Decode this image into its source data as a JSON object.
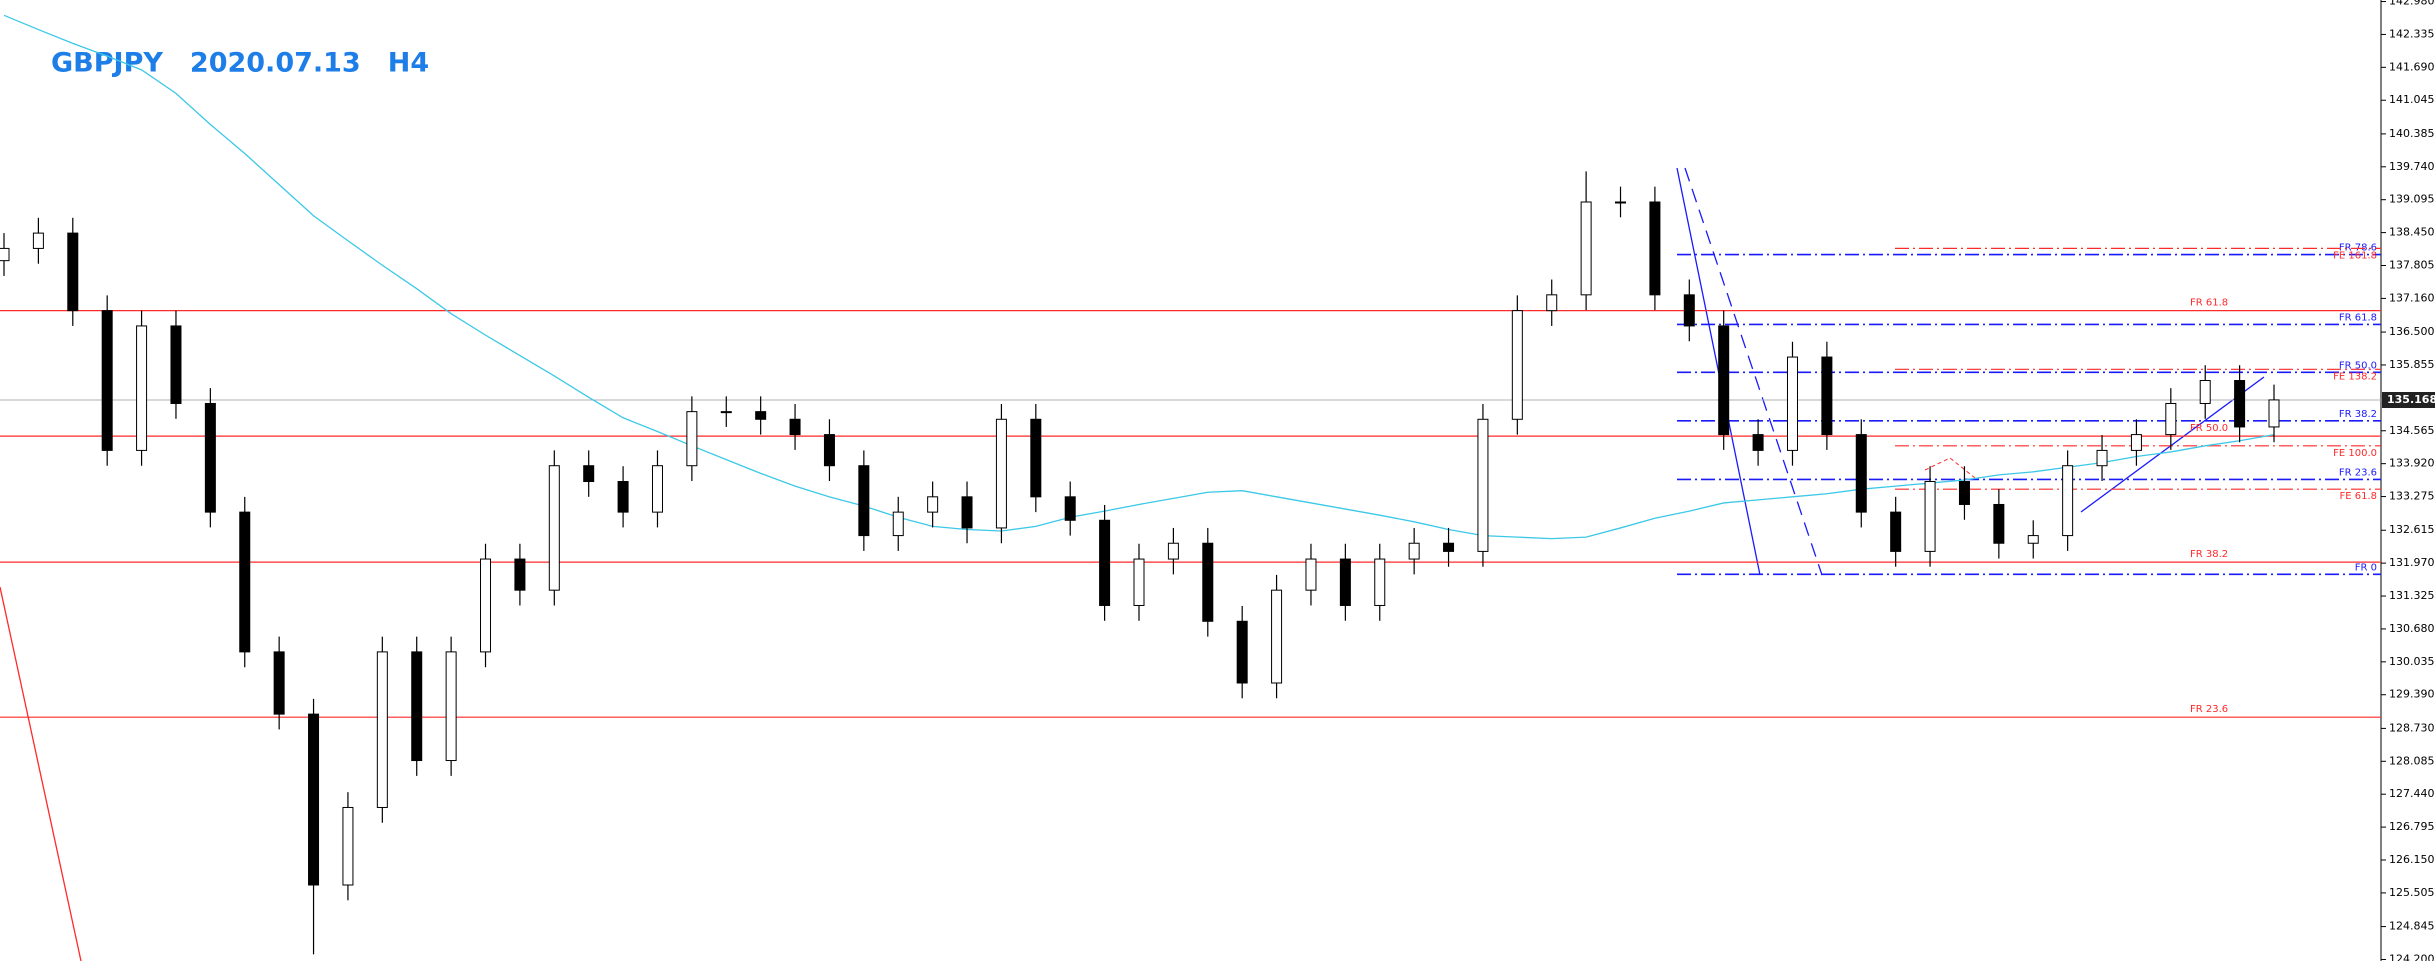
{
  "chart_data": {
    "type": "candlestick",
    "title": "GBPJPY　2020.07.13　H4",
    "title_color": "#1e7ee8",
    "ylim": [
      124.17,
      143.01
    ],
    "yticks": [
      {
        "value": 142.98,
        "label": "142.980"
      },
      142.335,
      {
        "value": 141.69,
        "label": "141.690"
      },
      141.045,
      140.385,
      {
        "value": 139.74,
        "label": "139.740"
      },
      139.095,
      {
        "value": 138.45,
        "label": "138.450"
      },
      137.805,
      {
        "value": 137.16,
        "label": "137.160"
      },
      {
        "value": 136.5,
        "label": "136.500"
      },
      135.855,
      134.565,
      {
        "value": 133.92,
        "label": "133.920"
      },
      133.275,
      132.615,
      {
        "value": 131.97,
        "label": "131.970"
      },
      131.325,
      {
        "value": 130.68,
        "label": "130.680"
      },
      130.035,
      {
        "value": 129.39,
        "label": "129.390"
      },
      {
        "value": 128.73,
        "label": "128.730"
      },
      128.085,
      {
        "value": 127.44,
        "label": "127.440"
      },
      126.795,
      {
        "value": 126.15,
        "label": "126.150"
      },
      125.505,
      124.845,
      {
        "value": 124.2,
        "label": "124.200"
      }
    ],
    "current": 135.168,
    "open": [
      137.9,
      138.14,
      138.44,
      136.92,
      134.18,
      136.62,
      135.1,
      132.97,
      130.23,
      129.01,
      125.66,
      127.18,
      130.23,
      128.1,
      130.23,
      132.05,
      131.44,
      133.88,
      133.57,
      132.97,
      133.88,
      134.94,
      134.94,
      134.79,
      134.49,
      133.88,
      132.51,
      132.97,
      133.27,
      132.66,
      134.79,
      133.27,
      132.81,
      131.14,
      132.05,
      132.36,
      130.83,
      129.62,
      131.44,
      132.05,
      131.14,
      132.05,
      132.36,
      132.2,
      134.79,
      136.92,
      137.23,
      139.05,
      139.05,
      137.23,
      136.62,
      134.49,
      134.18,
      136.01,
      134.49,
      132.97,
      132.2,
      133.57,
      133.12,
      132.36,
      132.51,
      133.88,
      134.18,
      134.49,
      135.1,
      135.55,
      134.64
    ],
    "high": [
      138.44,
      138.74,
      138.74,
      137.22,
      136.92,
      136.92,
      135.4,
      133.27,
      130.53,
      129.31,
      127.48,
      130.53,
      130.53,
      130.53,
      132.35,
      132.35,
      134.18,
      134.18,
      133.87,
      134.18,
      135.24,
      135.24,
      135.24,
      135.09,
      134.79,
      134.18,
      133.27,
      133.57,
      133.57,
      135.09,
      135.09,
      133.57,
      133.11,
      132.35,
      132.66,
      132.66,
      131.13,
      131.74,
      132.35,
      132.35,
      132.35,
      132.66,
      132.66,
      135.09,
      137.22,
      137.53,
      139.65,
      139.35,
      139.35,
      137.53,
      136.92,
      134.79,
      136.31,
      136.31,
      134.79,
      133.27,
      133.87,
      133.87,
      133.42,
      132.81,
      134.18,
      134.48,
      134.79,
      135.4,
      135.85,
      135.85,
      135.47
    ],
    "low": [
      137.6,
      137.84,
      136.62,
      133.88,
      133.88,
      134.8,
      132.67,
      129.93,
      128.71,
      124.3,
      125.36,
      126.88,
      127.8,
      127.8,
      129.93,
      131.14,
      131.14,
      133.27,
      132.67,
      132.67,
      133.58,
      134.64,
      134.49,
      134.19,
      133.58,
      132.21,
      132.21,
      132.67,
      132.36,
      132.36,
      132.97,
      132.51,
      130.84,
      130.84,
      131.75,
      130.53,
      129.32,
      129.32,
      131.14,
      130.84,
      130.84,
      131.75,
      131.9,
      131.9,
      134.49,
      136.62,
      136.93,
      138.75,
      136.93,
      136.32,
      134.19,
      133.88,
      133.88,
      134.19,
      132.67,
      131.9,
      131.9,
      132.82,
      132.06,
      132.06,
      132.21,
      133.58,
      133.88,
      134.19,
      134.8,
      134.34,
      134.34
    ],
    "close": [
      138.14,
      138.44,
      136.92,
      134.18,
      136.62,
      135.1,
      132.97,
      130.23,
      129.01,
      125.66,
      127.18,
      130.23,
      128.1,
      130.23,
      132.05,
      131.44,
      133.88,
      133.57,
      132.97,
      133.88,
      134.94,
      134.94,
      134.79,
      134.49,
      133.88,
      132.51,
      132.97,
      133.27,
      132.66,
      134.79,
      133.27,
      132.81,
      131.14,
      132.05,
      132.36,
      130.83,
      129.62,
      131.44,
      132.05,
      131.14,
      132.05,
      132.36,
      132.2,
      134.79,
      136.92,
      137.23,
      139.05,
      139.05,
      137.23,
      136.62,
      134.49,
      134.18,
      136.01,
      134.49,
      132.97,
      132.2,
      133.57,
      133.12,
      132.36,
      132.51,
      133.88,
      134.18,
      134.49,
      135.1,
      135.55,
      134.64,
      135.17
    ],
    "ma_color": "#3cc8e8",
    "ma": [
      142.71,
      142.43,
      142.16,
      141.91,
      141.64,
      141.18,
      140.57,
      140.0,
      139.39,
      138.78,
      138.29,
      137.81,
      137.35,
      136.86,
      136.44,
      136.04,
      135.64,
      135.22,
      134.82,
      134.55,
      134.27,
      134.0,
      133.73,
      133.48,
      133.27,
      133.09,
      132.87,
      132.69,
      132.63,
      132.6,
      132.69,
      132.87,
      132.99,
      133.12,
      133.24,
      133.36,
      133.39,
      133.27,
      133.15,
      133.03,
      132.91,
      132.78,
      132.63,
      132.51,
      132.48,
      132.45,
      132.48,
      132.66,
      132.85,
      132.99,
      133.15,
      133.21,
      133.27,
      133.33,
      133.42,
      133.48,
      133.54,
      133.6,
      133.7,
      133.76,
      133.85,
      133.94,
      134.06,
      134.15,
      134.27,
      134.37,
      134.49
    ],
    "levels": [
      {
        "label": "FR 61.8",
        "value": 136.92,
        "color": "#ff2a2a",
        "style": "solid"
      },
      {
        "label": "FR 50.0",
        "value": 134.46,
        "color": "#ff2a2a",
        "style": "solid"
      },
      {
        "label": "FR 38.2",
        "value": 131.99,
        "color": "#ff2a2a",
        "style": "solid"
      },
      {
        "label": "FR 23.6",
        "value": 128.95,
        "color": "#ff2a2a",
        "style": "solid"
      },
      {
        "label": "FR 78.6",
        "value": 138.02,
        "color": "#1a1aff",
        "style": "dashdot"
      },
      {
        "label": "FR 61.8",
        "value": 136.65,
        "color": "#1a1aff",
        "style": "dashdot"
      },
      {
        "label": "FR 50.0",
        "value": 135.71,
        "color": "#1a1aff",
        "style": "dashdot"
      },
      {
        "label": "FR 38.2",
        "value": 134.76,
        "color": "#1a1aff",
        "style": "dashdot"
      },
      {
        "label": "FR 23.6",
        "value": 133.61,
        "color": "#1a1aff",
        "style": "dashdot"
      },
      {
        "label": "FR 0",
        "value": 131.75,
        "color": "#1a1aff",
        "style": "dashdot"
      },
      {
        "label": "FE 161.8",
        "value": 138.14,
        "color": "#ff2a2a",
        "style": "dashdot"
      },
      {
        "label": "FE 138.2",
        "value": 135.77,
        "color": "#ff2a2a",
        "style": "dashdot"
      },
      {
        "label": "FE 100.0",
        "value": 134.27,
        "color": "#ff2a2a",
        "style": "dashdot"
      },
      {
        "label": "FE 61.8",
        "value": 133.42,
        "color": "#ff2a2a",
        "style": "dashdot"
      }
    ]
  }
}
